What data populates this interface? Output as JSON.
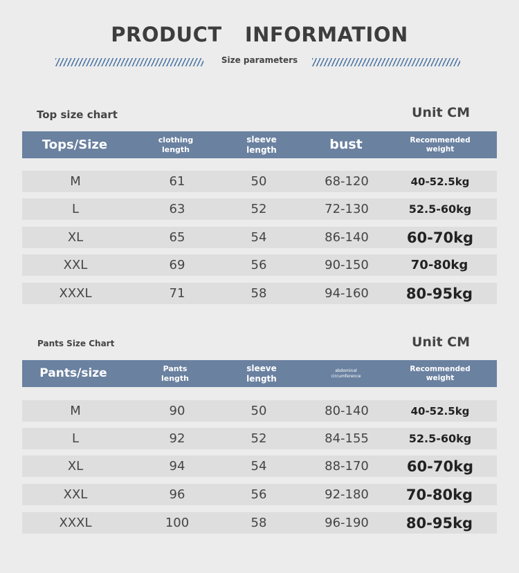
{
  "header": {
    "title": "PRODUCT  INFORMATION",
    "subtitle": "Size parameters"
  },
  "top_chart": {
    "label": "Top size chart",
    "unit": "Unit CM",
    "columns": [
      "Tops/Size",
      "clothing length",
      "sleeve length",
      "bust",
      "Recommended weight"
    ],
    "rows": [
      [
        "M",
        "61",
        "50",
        "68-120",
        "40-52.5kg"
      ],
      [
        "L",
        "63",
        "52",
        "72-130",
        "52.5-60kg"
      ],
      [
        "XL",
        "65",
        "54",
        "86-140",
        "60-70kg"
      ],
      [
        "XXL",
        "69",
        "56",
        "90-150",
        "70-80kg"
      ],
      [
        "XXXL",
        "71",
        "58",
        "94-160",
        "80-95kg"
      ]
    ]
  },
  "pants_chart": {
    "label": "Pants Size Chart",
    "unit": "Unit CM",
    "columns": [
      "Pants/size",
      "Pants length",
      "sleeve length",
      "abdominal circumference",
      "Recommended weight"
    ],
    "rows": [
      [
        "M",
        "90",
        "50",
        "80-140",
        "40-52.5kg"
      ],
      [
        "L",
        "92",
        "52",
        "84-155",
        "52.5-60kg"
      ],
      [
        "XL",
        "94",
        "54",
        "88-170",
        "60-70kg"
      ],
      [
        "XXL",
        "96",
        "56",
        "92-180",
        "70-80kg"
      ],
      [
        "XXXL",
        "100",
        "58",
        "96-190",
        "80-95kg"
      ]
    ]
  }
}
